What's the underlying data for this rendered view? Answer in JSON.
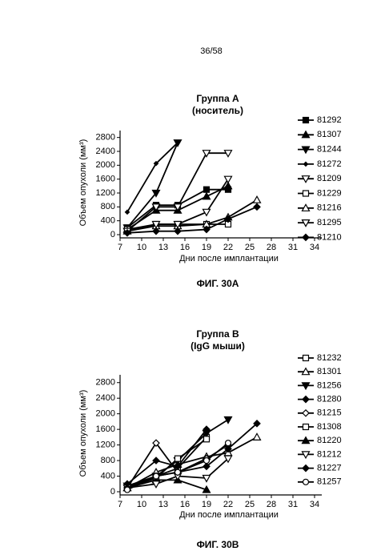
{
  "page_number": "36/58",
  "chart_data": [
    {
      "type": "line",
      "title": "Группа А",
      "subtitle": "(носитель)",
      "caption": "ФИГ. 30А",
      "x_label": "Дни после имплантации",
      "y_label": "Объем опухоли (мм³)",
      "xlim": [
        7,
        35
      ],
      "xticks": [
        7,
        10,
        13,
        16,
        19,
        22,
        25,
        28,
        31,
        34
      ],
      "ylim": [
        0,
        3000
      ],
      "yticks": [
        0,
        400,
        800,
        1200,
        1600,
        2000,
        2400,
        2800
      ],
      "x": [
        8,
        12,
        15,
        19,
        22,
        26
      ],
      "series": [
        {
          "name": "81292",
          "color": "#000000",
          "marker": "square-filled",
          "values": [
            200,
            850,
            850,
            1300,
            1300,
            null
          ]
        },
        {
          "name": "81307",
          "color": "#000000",
          "marker": "triangle-filled",
          "values": [
            150,
            700,
            700,
            1100,
            1400,
            null
          ]
        },
        {
          "name": "81244",
          "color": "#000000",
          "marker": "down-filled",
          "values": [
            200,
            1200,
            2650,
            null,
            null,
            null
          ]
        },
        {
          "name": "81272",
          "color": "#000000",
          "marker": "diamond-small",
          "values": [
            650,
            2050,
            2650,
            null,
            null,
            null
          ]
        },
        {
          "name": "81209",
          "color": "#000000",
          "marker": "down-open",
          "values": [
            100,
            800,
            800,
            2350,
            2350,
            null
          ]
        },
        {
          "name": "81229",
          "color": "#000000",
          "marker": "square-open",
          "values": [
            150,
            300,
            300,
            300,
            300,
            null
          ]
        },
        {
          "name": "81216",
          "color": "#000000",
          "marker": "triangle-open",
          "values": [
            100,
            250,
            250,
            300,
            500,
            1000
          ]
        },
        {
          "name": "81295",
          "color": "#000000",
          "marker": "down-open",
          "values": [
            100,
            300,
            300,
            650,
            1600,
            null
          ]
        },
        {
          "name": "81210",
          "color": "#000000",
          "marker": "diamond-filled",
          "values": [
            50,
            100,
            100,
            150,
            450,
            800
          ]
        }
      ]
    },
    {
      "type": "line",
      "title": "Группа В",
      "subtitle": "(IgG мыши)",
      "caption": "ФИГ. 30В",
      "x_label": "Дни после имплантации",
      "y_label": "Объем опухоли (мм³)",
      "xlim": [
        7,
        35
      ],
      "xticks": [
        7,
        10,
        13,
        16,
        19,
        22,
        25,
        28,
        31,
        34
      ],
      "ylim": [
        0,
        3000
      ],
      "yticks": [
        0,
        400,
        800,
        1200,
        1600,
        2000,
        2400,
        2800
      ],
      "x": [
        8,
        12,
        15,
        19,
        22,
        26
      ],
      "series": [
        {
          "name": "81232",
          "color": "#000000",
          "marker": "square-open",
          "values": [
            100,
            400,
            600,
            1400,
            null,
            null
          ]
        },
        {
          "name": "81301",
          "color": "#000000",
          "marker": "triangle-open",
          "values": [
            100,
            500,
            700,
            900,
            1000,
            1400
          ]
        },
        {
          "name": "81256",
          "color": "#000000",
          "marker": "down-filled",
          "values": [
            150,
            400,
            800,
            1500,
            1850,
            null
          ]
        },
        {
          "name": "81280",
          "color": "#000000",
          "marker": "diamond-filled",
          "values": [
            200,
            800,
            650,
            1600,
            null,
            null
          ]
        },
        {
          "name": "81215",
          "color": "#000000",
          "marker": "diamond-open",
          "values": [
            100,
            1250,
            500,
            850,
            1200,
            null
          ]
        },
        {
          "name": "81308",
          "color": "#000000",
          "marker": "square-open",
          "values": [
            100,
            350,
            850,
            1350,
            null,
            null
          ]
        },
        {
          "name": "81220",
          "color": "#000000",
          "marker": "triangle-filled",
          "values": [
            100,
            300,
            300,
            50,
            null,
            null
          ]
        },
        {
          "name": "81212",
          "color": "#000000",
          "marker": "down-open",
          "values": [
            100,
            200,
            400,
            350,
            850,
            null
          ]
        },
        {
          "name": "81227",
          "color": "#000000",
          "marker": "diamond-filled",
          "values": [
            100,
            400,
            500,
            650,
            1100,
            1750
          ]
        },
        {
          "name": "81257",
          "color": "#000000",
          "marker": "circle-open",
          "values": [
            50,
            400,
            500,
            800,
            1250,
            null
          ]
        }
      ]
    }
  ]
}
